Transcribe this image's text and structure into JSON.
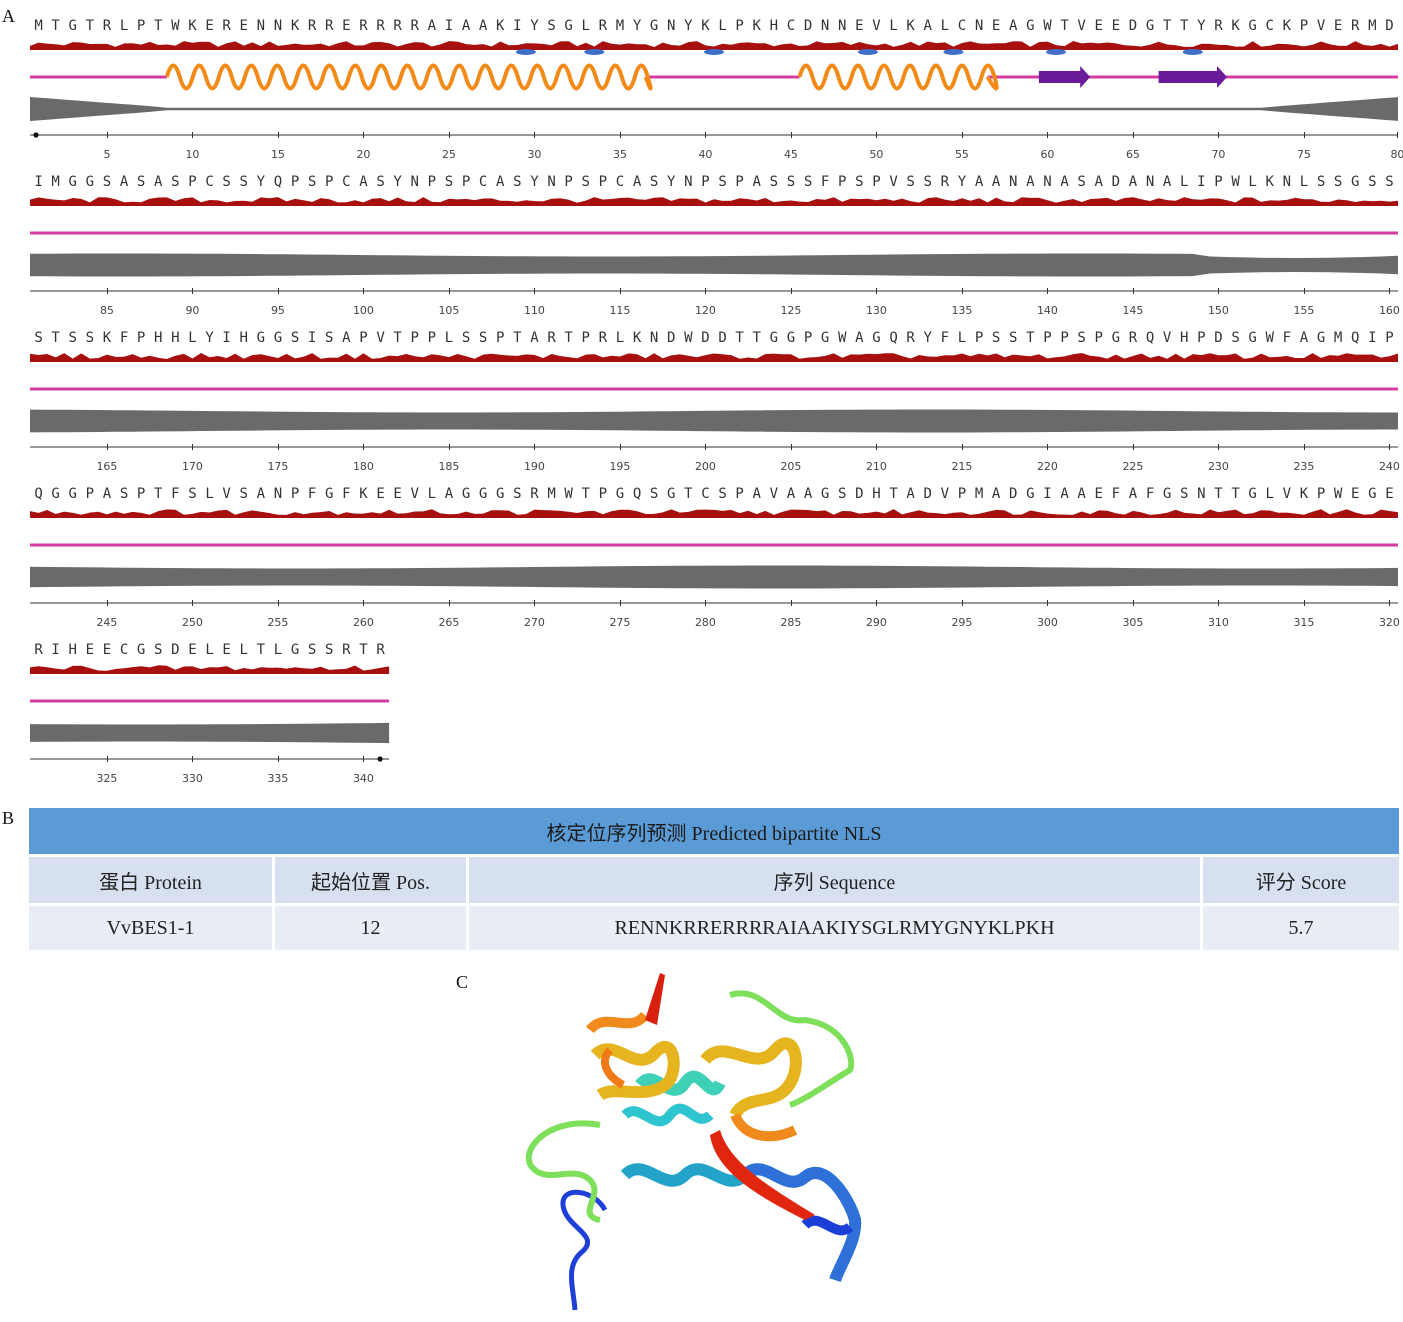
{
  "panels": {
    "a": "A",
    "b": "B",
    "c": "C"
  },
  "sequence_rows": [
    {
      "letters": "MTGTRLPTWKERENNKRRERRRRAIAAKIYSGLRMYGNYKLPKHCDNNEVLKALCNEAGWTVEEDGTTYRKGCKPVERMD",
      "ticks": [
        "5",
        "10",
        "15",
        "20",
        "25",
        "30",
        "35",
        "40",
        "45",
        "50",
        "55",
        "60",
        "65",
        "70",
        "75",
        "80"
      ],
      "start_dot": true,
      "end_dot": false
    },
    {
      "letters": "IMGGSASASPCSSYQPSPCASYNPSPCASYNPSPCASYNPSPASSSFPSPVSSRYAANANASADANALIPWLKNLSSGSS",
      "ticks": [
        "85",
        "90",
        "95",
        "100",
        "105",
        "110",
        "115",
        "120",
        "125",
        "130",
        "135",
        "140",
        "145",
        "150",
        "155",
        "160"
      ],
      "start_dot": false,
      "end_dot": false
    },
    {
      "letters": "STSSKFPHHLYIHGGSISAPVTPPLSSPTARTPRLKNDWDDTTGGPGWAGQRYFLPSSTPPSPGRQVHPDSGWFAGMQIP",
      "ticks": [
        "165",
        "170",
        "175",
        "180",
        "185",
        "190",
        "195",
        "200",
        "205",
        "210",
        "215",
        "220",
        "225",
        "230",
        "235",
        "240"
      ],
      "start_dot": false,
      "end_dot": false
    },
    {
      "letters": "QGGPASPTFSLVSANPFGFKEEVLAGGGSRMWTPGQSGTCSPAVAAGSDHTADVPMADGIAAEFAFGSNTTGLVKPWEGE",
      "ticks": [
        "245",
        "250",
        "255",
        "260",
        "265",
        "270",
        "275",
        "280",
        "285",
        "290",
        "295",
        "300",
        "305",
        "310",
        "315",
        "320"
      ],
      "start_dot": false,
      "end_dot": false
    },
    {
      "letters": "RIHEECGSDELELTLGSSRTR",
      "ticks": [
        "325",
        "330",
        "335",
        "340"
      ],
      "start_dot": false,
      "end_dot": true
    }
  ],
  "secondary_structure": {
    "helices": [
      [
        9,
        36
      ],
      [
        46,
        56
      ]
    ],
    "strands": [
      [
        60,
        62
      ],
      [
        67,
        70
      ]
    ]
  },
  "colors": {
    "hydrophobicity": "#a80f0f",
    "hydrophobicity_neg": "#3f6fc9",
    "coil": "#d63c9f",
    "helix": "#f28a18",
    "helix_front": "#f7b72c",
    "strand": "#6a1b9a",
    "disorder": "#6a6a6a",
    "table_title_bg": "#5b9bd5",
    "table_header_bg": "#d6e0ef",
    "table_row_bg": "#e9edf5"
  },
  "nls_table": {
    "title": "核定位序列预测 Predicted bipartite NLS",
    "headers": [
      "蛋白 Protein",
      "起始位置 Pos.",
      "序列 Sequence",
      "评分 Score"
    ],
    "rows": [
      [
        "VvBES1-1",
        "12",
        "RENNKRRERRRRAIAAKIYSGLRMYGNYKLPKH",
        "5.7"
      ]
    ]
  },
  "structure": {
    "icon": "protein-ribbon-3d-icon"
  }
}
